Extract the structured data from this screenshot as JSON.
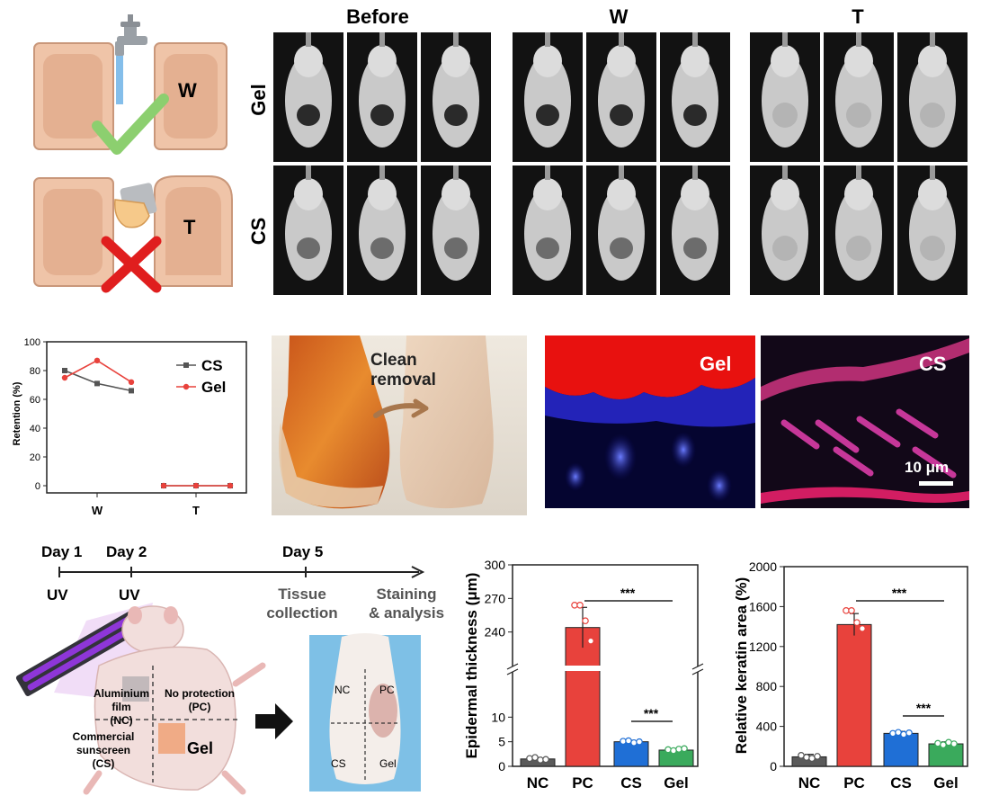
{
  "panelA": {
    "col_headers": [
      "Before",
      "W",
      "T"
    ],
    "row_labels": [
      "Gel",
      "CS"
    ],
    "schematic_labels": [
      "W",
      "T"
    ]
  },
  "panelB": {
    "photo_text": "Clean\nremoval",
    "photo_text_line1": "Clean",
    "photo_text_line2": "removal",
    "fluor_labels": [
      "Gel",
      "CS"
    ],
    "scale_bar": "10 μm"
  },
  "panelC": {
    "timeline": {
      "days": [
        "Day 1",
        "Day 2",
        "Day 5"
      ],
      "uv_labels": [
        "UV",
        "UV"
      ],
      "tissue_collection": [
        "Tissue",
        "collection"
      ],
      "staining": [
        "Staining",
        "& analysis"
      ]
    },
    "mouse_regions": {
      "nc": [
        "Aluminium film",
        "(NC)"
      ],
      "pc": [
        "No protection",
        "(PC)"
      ],
      "cs": [
        "Commercial",
        "sunscreen",
        "(CS)"
      ],
      "gel": "Gel"
    },
    "photo_regions": [
      "NC",
      "PC",
      "CS",
      "Gel"
    ]
  },
  "chart_data": [
    {
      "type": "line",
      "title": "",
      "xlabel": "",
      "ylabel": "Retention (%)",
      "ylim": [
        0,
        100
      ],
      "yticks": [
        0,
        20,
        40,
        60,
        80,
        100
      ],
      "categories": [
        "W",
        "T"
      ],
      "legend_position": "top-right",
      "series": [
        {
          "name": "CS",
          "color": "#555555",
          "marker": "square",
          "values": [
            [
              80,
              71,
              66
            ],
            [
              0,
              0,
              0
            ]
          ]
        },
        {
          "name": "Gel",
          "color": "#e8423c",
          "marker": "circle",
          "values": [
            [
              75,
              87,
              72
            ],
            [
              0,
              0,
              0
            ]
          ]
        }
      ]
    },
    {
      "type": "bar",
      "title": "",
      "xlabel": "",
      "ylabel": "Epidermal thickness (μm)",
      "broken_axis": true,
      "ylim_lower": [
        0,
        15
      ],
      "ylim_upper": [
        210,
        300
      ],
      "yticks": [
        0,
        5,
        10,
        240,
        270,
        300
      ],
      "categories": [
        "NC",
        "PC",
        "CS",
        "Gel"
      ],
      "colors": [
        "#5a5a5a",
        "#e8423c",
        "#1f6fd6",
        "#3aaa5c"
      ],
      "values": [
        1.5,
        244,
        5,
        3.3
      ],
      "errors": [
        0.3,
        18,
        0.3,
        0.3
      ],
      "significance": [
        [
          "PC",
          "Gel",
          "***"
        ],
        [
          "CS",
          "Gel",
          "***"
        ]
      ]
    },
    {
      "type": "bar",
      "title": "",
      "xlabel": "",
      "ylabel": "Relative keratin area (%)",
      "ylim": [
        0,
        2000
      ],
      "yticks": [
        0,
        400,
        800,
        1200,
        1600,
        2000
      ],
      "categories": [
        "NC",
        "PC",
        "CS",
        "Gel"
      ],
      "colors": [
        "#5a5a5a",
        "#e8423c",
        "#1f6fd6",
        "#3aaa5c"
      ],
      "values": [
        95,
        1420,
        330,
        225
      ],
      "errors": [
        25,
        110,
        20,
        20
      ],
      "significance": [
        [
          "PC",
          "Gel",
          "***"
        ],
        [
          "CS",
          "Gel",
          "***"
        ]
      ]
    }
  ]
}
